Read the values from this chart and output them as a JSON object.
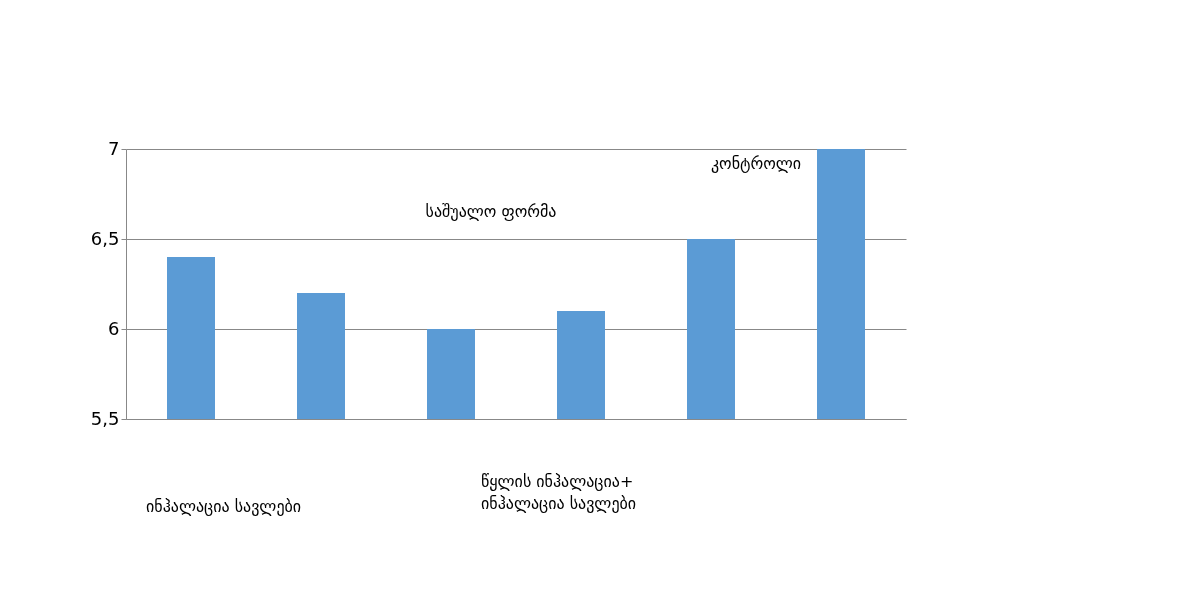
{
  "chart_data": {
    "type": "bar",
    "categories": [
      null,
      null,
      null,
      null,
      null,
      null
    ],
    "series": [
      {
        "color": "#5b9bd5",
        "values": [
          6.4,
          6.2,
          6.0,
          6.1,
          6.5,
          7.0
        ]
      }
    ],
    "ylim": [
      5.5,
      7
    ],
    "yticks": [
      {
        "value": 5.5,
        "label": "5,5"
      },
      {
        "value": 6,
        "label": "6"
      },
      {
        "value": 6.5,
        "label": "6,5"
      },
      {
        "value": 7,
        "label": "7"
      }
    ],
    "grid": "y",
    "annotations": [
      "კონტროლი",
      "საშუალო ფორმა",
      "ინჰალაცია სავლები",
      "წყლის   ინჰალაცია+\nინჰალაცია  სავლები"
    ]
  }
}
